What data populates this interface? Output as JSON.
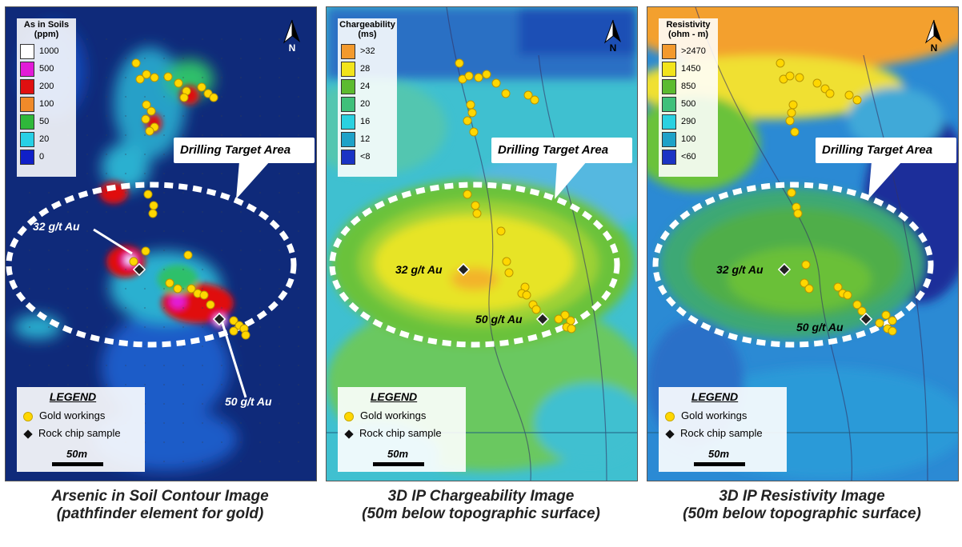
{
  "panels": [
    {
      "scale_title": "As in Soils\n(ppm)",
      "scale": [
        {
          "label": "1000",
          "color": "#ffffff"
        },
        {
          "label": "500",
          "color": "#e21bd8"
        },
        {
          "label": "200",
          "color": "#e01010"
        },
        {
          "label": "100",
          "color": "#f08a2a"
        },
        {
          "label": "50",
          "color": "#2fb83a"
        },
        {
          "label": "20",
          "color": "#27d0e6"
        },
        {
          "label": "0",
          "color": "#1020c8"
        }
      ],
      "callout": "Drilling Target Area",
      "au_labels": [
        "32 g/t Au",
        "50 g/t Au"
      ],
      "north": "N",
      "caption_line1": "Arsenic in Soil Contour Image",
      "caption_line2": "(pathfinder element for gold)"
    },
    {
      "scale_title": "Chargeability\n(ms)",
      "scale": [
        {
          "label": ">32",
          "color": "#f39a2d"
        },
        {
          "label": "28",
          "color": "#f2e41b"
        },
        {
          "label": "24",
          "color": "#5cbb2f"
        },
        {
          "label": "20",
          "color": "#3fc07a"
        },
        {
          "label": "16",
          "color": "#2ad1e0"
        },
        {
          "label": "12",
          "color": "#1ea2c8"
        },
        {
          "label": "<8",
          "color": "#1a34c4"
        }
      ],
      "callout": "Drilling Target Area",
      "au_labels": [
        "32 g/t Au",
        "50 g/t Au"
      ],
      "north": "N",
      "caption_line1": "3D IP Chargeability Image",
      "caption_line2": "(50m below topographic surface)"
    },
    {
      "scale_title": "Resistivity\n(ohm - m)",
      "scale": [
        {
          "label": ">2470",
          "color": "#f39a2d"
        },
        {
          "label": "1450",
          "color": "#f2e41b"
        },
        {
          "label": "850",
          "color": "#5cbb2f"
        },
        {
          "label": "500",
          "color": "#3fc07a"
        },
        {
          "label": "290",
          "color": "#2ad1e0"
        },
        {
          "label": "100",
          "color": "#1ea2c8"
        },
        {
          "label": "<60",
          "color": "#1a34c4"
        }
      ],
      "callout": "Drilling Target Area",
      "au_labels": [
        "32 g/t Au",
        "50 g/t Au"
      ],
      "north": "N",
      "caption_line1": "3D IP Resistivity Image",
      "caption_line2": "(50m below topographic surface)"
    }
  ],
  "legend": {
    "title": "LEGEND",
    "gold_workings": "Gold workings",
    "rock_chip": "Rock chip sample",
    "scale_bar": "50m"
  }
}
